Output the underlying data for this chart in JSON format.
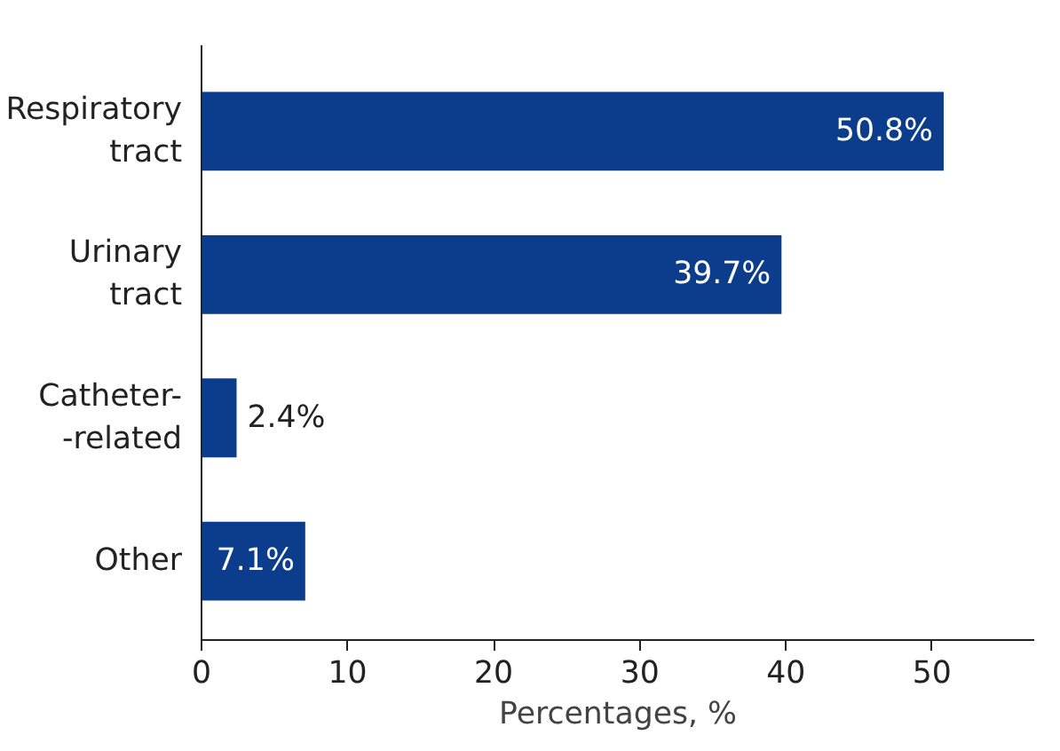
{
  "chart_data": {
    "type": "bar",
    "orientation": "horizontal",
    "categories": [
      "Respiratory\ntract",
      "Urinary\ntract",
      "Catheter-\n-related",
      "Other"
    ],
    "values": [
      50.8,
      39.7,
      2.4,
      7.1
    ],
    "value_labels": [
      "50.8%",
      "39.7%",
      "2.4%",
      "7.1%"
    ],
    "color": "#0b3d8c",
    "xlim": [
      0,
      57
    ],
    "xticks": [
      0,
      10,
      20,
      30,
      40,
      50
    ],
    "xlabel": "Percentages, %",
    "grid": false
  }
}
